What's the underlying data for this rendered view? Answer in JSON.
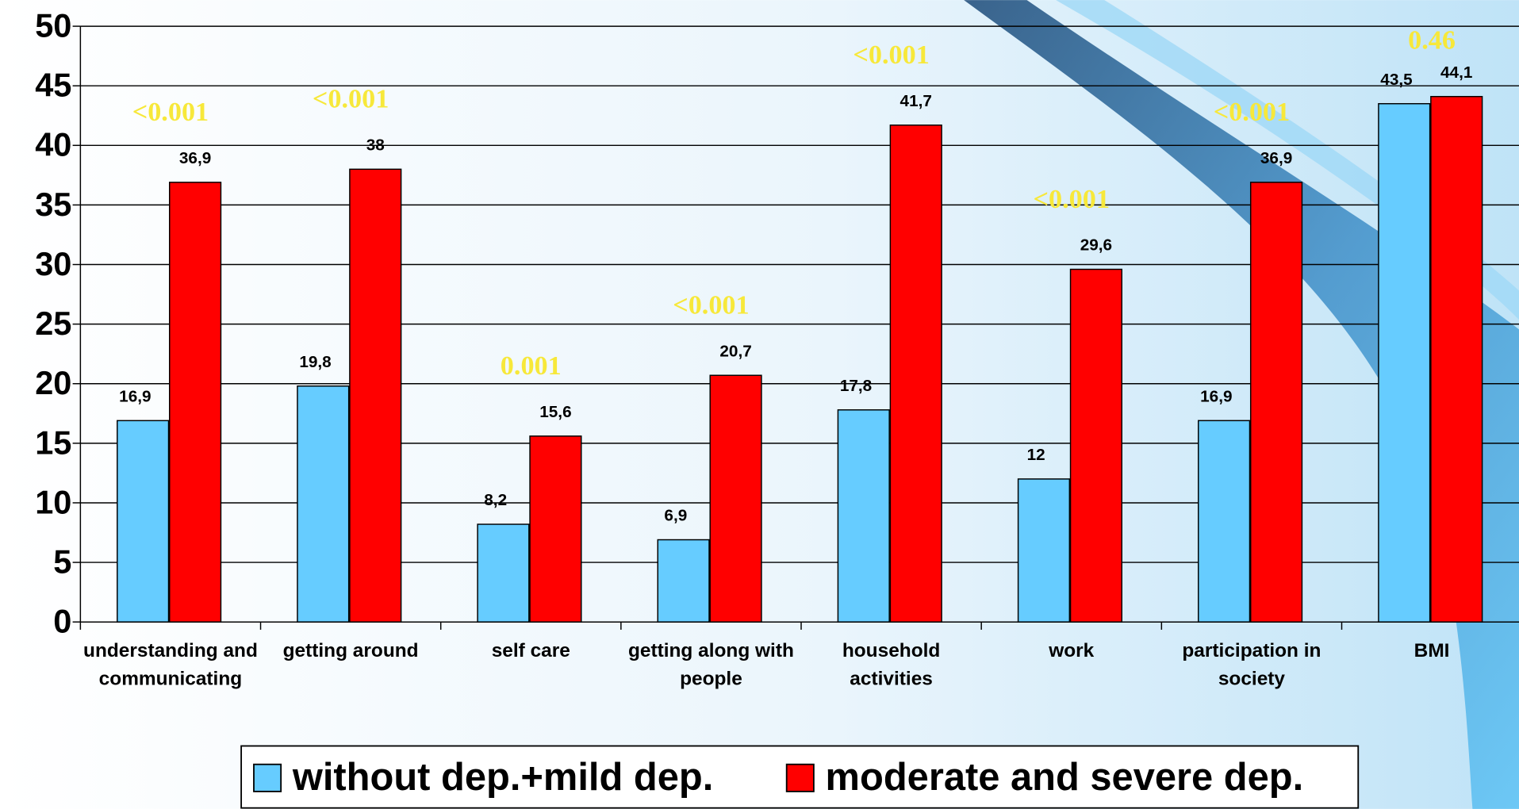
{
  "chart_data": {
    "type": "bar",
    "categories": [
      "understanding and communicating",
      "getting around",
      "self care",
      "getting along with people",
      "household activities",
      "work",
      "participation in society",
      "BMI"
    ],
    "series": [
      {
        "name": "without dep.+mild dep.",
        "color": "#66ccff",
        "values": [
          16.9,
          19.8,
          8.2,
          6.9,
          17.8,
          12,
          16.9,
          43.5
        ],
        "value_labels": [
          "16,9",
          "19,8",
          "8,2",
          "6,9",
          "17,8",
          "12",
          "16,9",
          "43,5"
        ]
      },
      {
        "name": "moderate and severe dep.",
        "color": "#ff0000",
        "values": [
          36.9,
          38,
          15.6,
          20.7,
          41.7,
          29.6,
          36.9,
          44.1
        ],
        "value_labels": [
          "36,9",
          "38",
          "15,6",
          "20,7",
          "41,7",
          "29,6",
          "36,9",
          "44,1"
        ]
      }
    ],
    "annotations": [
      "<0.001",
      "<0.001",
      "0.001",
      "<0.001",
      "<0.001",
      "<0.001",
      "<0.001",
      "0.46"
    ],
    "ylim": [
      0,
      50
    ],
    "yticks": [
      0,
      5,
      10,
      15,
      20,
      25,
      30,
      35,
      40,
      45,
      50
    ],
    "grid": true
  }
}
